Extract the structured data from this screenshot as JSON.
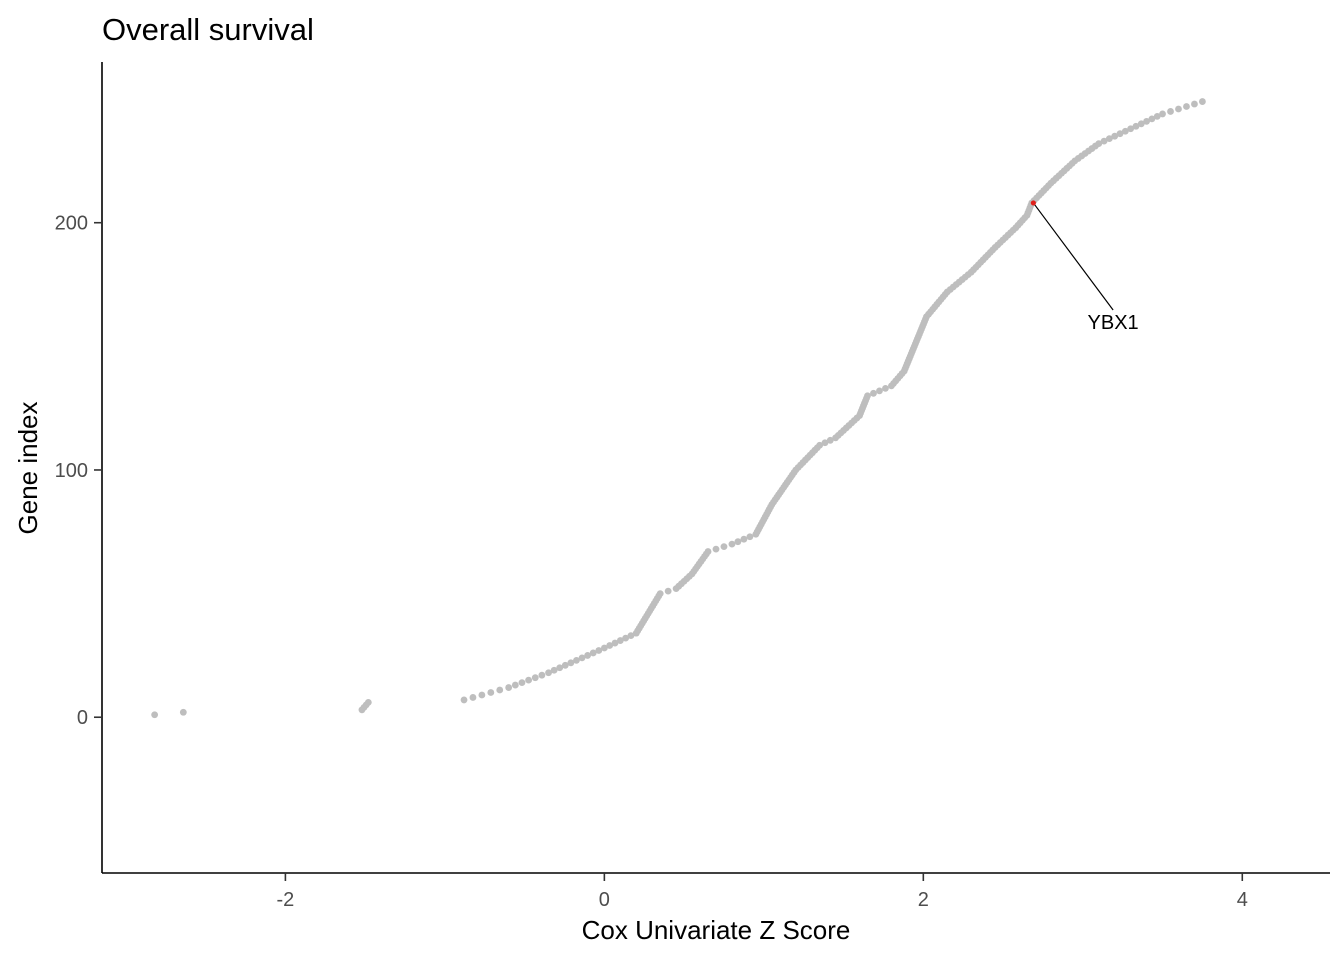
{
  "chart_data": {
    "type": "scatter",
    "title": "Overall survival",
    "xlabel": "Cox Univariate Z Score",
    "ylabel": "Gene index",
    "xlim": [
      -3.15,
      4.55
    ],
    "ylim": [
      -63,
      265
    ],
    "xticks": [
      -2,
      0,
      2,
      4
    ],
    "xtick_labels": [
      "-2",
      "0",
      "2",
      "4"
    ],
    "yticks": [
      0,
      100,
      200
    ],
    "ytick_labels": [
      "0",
      "100",
      "200"
    ],
    "grid": false,
    "legend": "none",
    "point_color": "#bebebe",
    "highlight_color": "#e0201b",
    "curve_knots": [
      [
        -2.82,
        1
      ],
      [
        -2.64,
        2
      ],
      [
        -1.52,
        3
      ],
      [
        -1.48,
        6
      ],
      [
        -1.1,
        6
      ],
      [
        -0.88,
        7
      ],
      [
        -0.6,
        12
      ],
      [
        -0.35,
        18
      ],
      [
        0.0,
        28
      ],
      [
        0.2,
        34
      ],
      [
        0.35,
        50
      ],
      [
        0.45,
        52
      ],
      [
        0.55,
        58
      ],
      [
        0.65,
        67
      ],
      [
        0.8,
        70
      ],
      [
        0.95,
        74
      ],
      [
        1.05,
        86
      ],
      [
        1.2,
        100
      ],
      [
        1.35,
        110
      ],
      [
        1.45,
        113
      ],
      [
        1.6,
        122
      ],
      [
        1.65,
        130
      ],
      [
        1.8,
        134
      ],
      [
        1.88,
        140
      ],
      [
        2.02,
        162
      ],
      [
        2.15,
        172
      ],
      [
        2.3,
        180
      ],
      [
        2.45,
        190
      ],
      [
        2.58,
        198
      ],
      [
        2.65,
        203
      ],
      [
        2.68,
        208
      ],
      [
        2.8,
        216
      ],
      [
        2.95,
        225
      ],
      [
        3.1,
        232
      ],
      [
        3.3,
        238
      ],
      [
        3.5,
        244
      ],
      [
        3.75,
        249
      ]
    ],
    "annotations": [
      {
        "label": "YBX1",
        "x": 2.69,
        "y": 208,
        "label_x": 3.19,
        "label_y": 157
      }
    ]
  }
}
